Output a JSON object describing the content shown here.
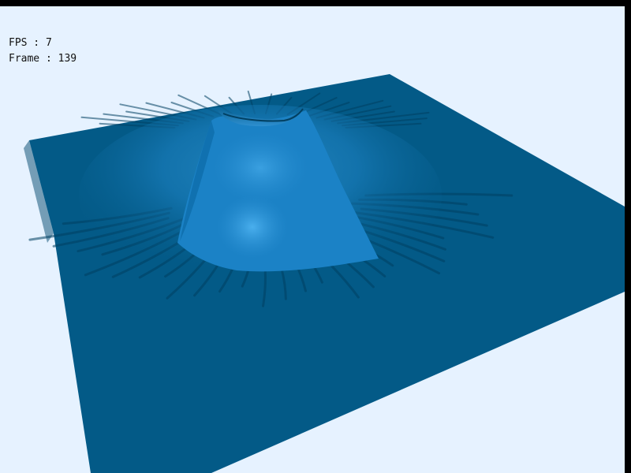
{
  "hud": {
    "fps_text": "FPS : 7",
    "frame_text": "Frame : 139"
  },
  "scene": {
    "subject": "terrain-surface-with-central-peak",
    "colors": {
      "background": "#e6f2ff",
      "surface": "#035a87",
      "surface_highlight": "#2f9be0",
      "surface_shadow": "#013f61",
      "window_border": "#000000"
    }
  }
}
